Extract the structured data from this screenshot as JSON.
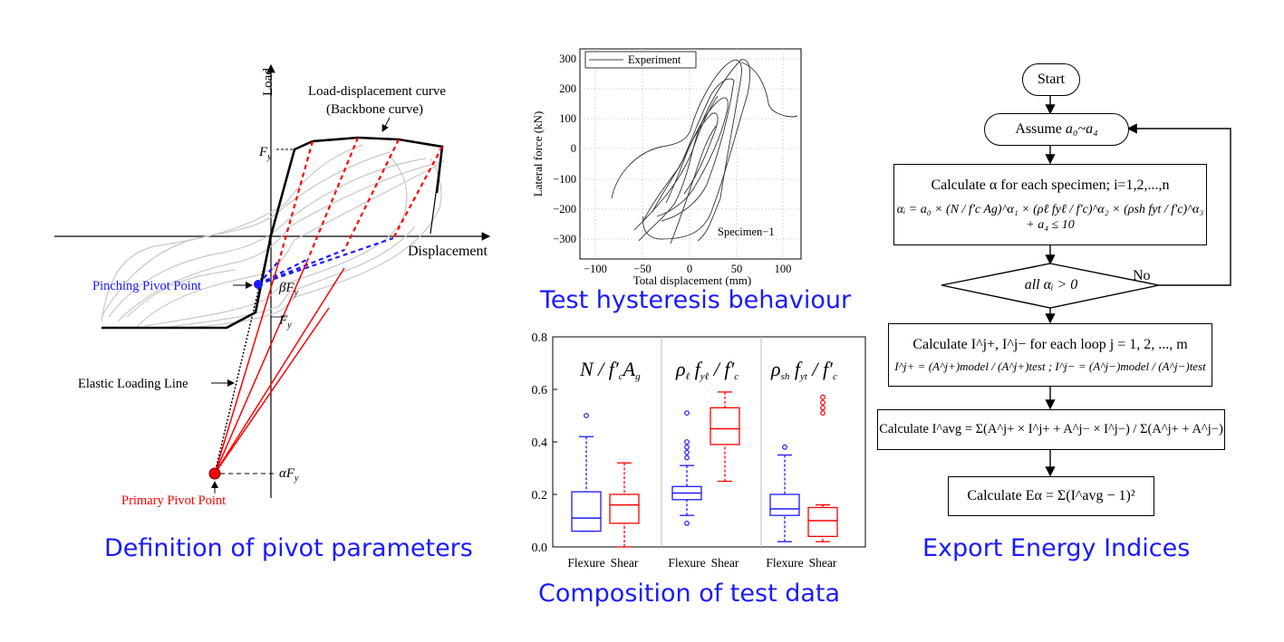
{
  "captions": {
    "pivot": "Definition of pivot parameters",
    "hysteresis": "Test hysteresis behaviour",
    "composition": "Composition of test data",
    "energy": "Export Energy Indices"
  },
  "pivot": {
    "axis_load": "Load",
    "axis_displacement": "Displacement",
    "backbone_label_1": "Load-displacement curve",
    "backbone_label_2": "(Backbone curve)",
    "fy_label": "F",
    "fy_sub": "y",
    "beta_label": "βF",
    "beta_sub": "y",
    "fy2_label": "F",
    "fy2_sub": "y",
    "pinching_label": "Pinching Pivot Point",
    "elastic_label": "Elastic Loading Line",
    "alpha_label": "αF",
    "alpha_sub": "y",
    "primary_label": "Primary Pivot Point",
    "colors": {
      "pinching": "#1a1aff",
      "primary": "#ff0000",
      "backbone": "#000000",
      "loops": "#c8c8c8"
    }
  },
  "hysteresis": {
    "legend": "Experiment",
    "specimen": "Specimen−1",
    "ylabel": "Lateral force (kN)",
    "xlabel": "Total displacement (mm)",
    "xticks": [
      "−100",
      "−50",
      "0",
      "50",
      "100"
    ],
    "yticks": [
      "300",
      "200",
      "100",
      "0",
      "−100",
      "−200",
      "−300"
    ]
  },
  "chart_data": {
    "type": "box",
    "ylim": [
      0,
      0.8
    ],
    "yticks": [
      "0.8",
      "0.6",
      "0.4",
      "0.2",
      "0.0"
    ],
    "groups": [
      {
        "title": "N/f'cAg",
        "boxes": [
          {
            "category": "Flexure",
            "color": "#1a1aff",
            "min": 0.06,
            "q1": 0.06,
            "median": 0.11,
            "q3": 0.21,
            "max": 0.42,
            "outliers": [
              0.5
            ]
          },
          {
            "category": "Shear",
            "color": "#ff0000",
            "min": 0.0,
            "q1": 0.09,
            "median": 0.16,
            "q3": 0.2,
            "max": 0.32,
            "outliers": []
          }
        ]
      },
      {
        "title": "ρℓfyℓ/f'c",
        "boxes": [
          {
            "category": "Flexure",
            "color": "#1a1aff",
            "min": 0.12,
            "q1": 0.18,
            "median": 0.205,
            "q3": 0.23,
            "max": 0.31,
            "outliers": [
              0.09,
              0.34,
              0.36,
              0.38,
              0.4,
              0.51
            ]
          },
          {
            "category": "Shear",
            "color": "#ff0000",
            "min": 0.25,
            "q1": 0.39,
            "median": 0.45,
            "q3": 0.53,
            "max": 0.59,
            "outliers": []
          }
        ]
      },
      {
        "title": "ρshfyt/f'c",
        "boxes": [
          {
            "category": "Flexure",
            "color": "#1a1aff",
            "min": 0.02,
            "q1": 0.12,
            "median": 0.145,
            "q3": 0.2,
            "max": 0.35,
            "outliers": [
              0.38
            ]
          },
          {
            "category": "Shear",
            "color": "#ff0000",
            "min": 0.02,
            "q1": 0.04,
            "median": 0.1,
            "q3": 0.15,
            "max": 0.16,
            "outliers": [
              0.51,
              0.53,
              0.55,
              0.57
            ]
          }
        ]
      }
    ],
    "xlabels": [
      "Flexure",
      "Shear",
      "Flexure",
      "Shear",
      "Flexure",
      "Shear"
    ]
  },
  "flowchart": {
    "start": "Start",
    "assume_prefix": "Assume ",
    "assume_math": "a₀~a₄",
    "calc_alpha_title": "Calculate α for each specimen; i=1,2,...,n",
    "calc_alpha_formula": "αᵢ = a₀ × (N / f′c Ag)^α₁ × (ρℓ fyℓ / f′c)^α₂ × (ρsh fyt / f′c)^α₃ + a₄ ≤ 10",
    "decision": "all αᵢ > 0",
    "no": "No",
    "calc_index_title": "Calculate I^j+, I^j− for each loop j = 1, 2, ..., m",
    "calc_index_formula": "I^j+ = (A^j+)model / (A^j+)test ;  I^j− = (A^j−)model / (A^j−)test",
    "calc_avg": "Calculate I^avg = Σ(A^j+ × I^j+ + A^j− × I^j−) / Σ(A^j+ + A^j−)",
    "calc_energy": "Calculate Eα = Σ(I^avg − 1)²"
  }
}
